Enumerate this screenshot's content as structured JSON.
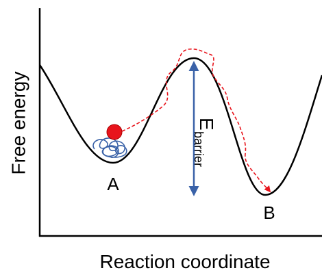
{
  "axes": {
    "y_label": "Free energy",
    "x_label": "Reaction coordinate"
  },
  "states": [
    {
      "label": "A"
    },
    {
      "label": "B"
    }
  ],
  "barrier": {
    "symbol": "E",
    "subscript": "barrier"
  }
}
